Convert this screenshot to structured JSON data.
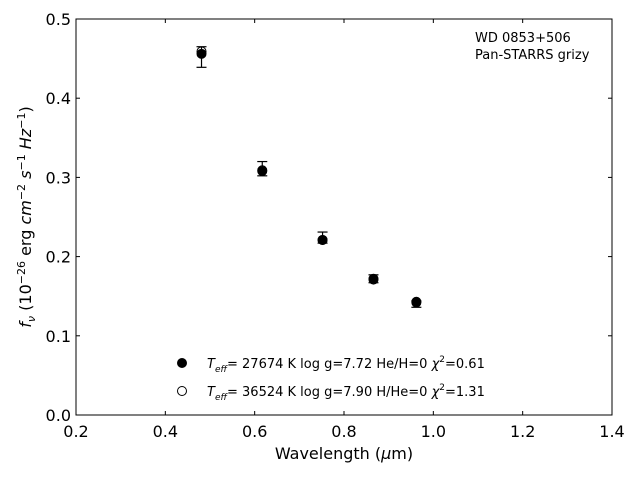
{
  "chart_data": {
    "type": "scatter",
    "annotation": [
      "WD 0853+506",
      "Pan-STARRS grizy"
    ],
    "xlabel": "Wavelength (μm)",
    "ylabel": "fν (10⁻²⁶ erg cm⁻² s⁻¹ Hz⁻¹)",
    "xlim": [
      0.2,
      1.4
    ],
    "ylim": [
      0.0,
      0.5
    ],
    "xticks": [
      "0.2",
      "0.4",
      "0.6",
      "0.8",
      "1.0",
      "1.2",
      "1.4"
    ],
    "yticks": [
      "0.0",
      "0.1",
      "0.2",
      "0.3",
      "0.4",
      "0.5"
    ],
    "grid": false,
    "legend_position": "bottom-center",
    "observed": {
      "x": [
        0.481,
        0.617,
        0.752,
        0.866,
        0.962
      ],
      "y": [
        0.452,
        0.311,
        0.224,
        0.172,
        0.14
      ],
      "yerr": [
        0.013,
        0.009,
        0.007,
        0.005,
        0.004
      ]
    },
    "series": [
      {
        "name": "Teff= 27674 K  log g=7.72  He/H=0  χ²=0.61",
        "marker": "filled",
        "x": [
          0.481,
          0.617,
          0.752,
          0.866,
          0.962
        ],
        "y": [
          0.456,
          0.308,
          0.221,
          0.172,
          0.143
        ]
      },
      {
        "name": "Teff= 36524 K  log g=7.90  H/He=0  χ²=1.31",
        "marker": "open",
        "x": [
          0.481,
          0.617,
          0.752,
          0.866,
          0.962
        ],
        "y": [
          0.459,
          0.309,
          0.221,
          0.171,
          0.142
        ]
      }
    ]
  }
}
